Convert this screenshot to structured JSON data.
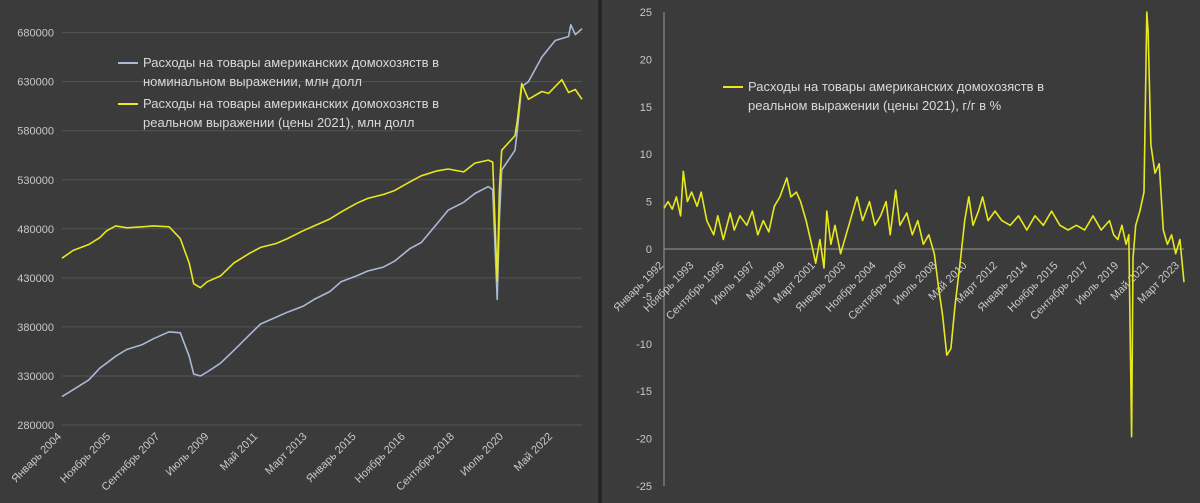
{
  "colors": {
    "background": "#3b3b3b",
    "grid": "#555555",
    "text": "#c8c8c8",
    "nominal": "#a9b9d6",
    "real": "#e8e81e"
  },
  "chart_data": [
    {
      "type": "line",
      "title": "",
      "xlabel": "",
      "ylabel": "",
      "x_range": [
        "2004-01",
        "2023-06"
      ],
      "ylim": [
        280000,
        700000
      ],
      "y_ticks": [
        "280000",
        "330000",
        "380000",
        "430000",
        "480000",
        "530000",
        "580000",
        "630000",
        "680000"
      ],
      "x_tick_labels": [
        "Январь 2004",
        "Ноябрь 2005",
        "Сентябрь 2007",
        "Июль 2009",
        "Май 2011",
        "Март 2013",
        "Январь 2015",
        "Ноябрь 2016",
        "Сентябрь 2018",
        "Июль 2020",
        "Май 2022"
      ],
      "x_tick_dates": [
        "2004-01",
        "2005-11",
        "2007-09",
        "2009-07",
        "2011-05",
        "2013-03",
        "2015-01",
        "2016-11",
        "2018-09",
        "2020-07",
        "2022-05"
      ],
      "grid": "horizontal",
      "legend_position": "top-left",
      "series": [
        {
          "name": "Расходы на товары американских домохозяств в номинальном выражении, млн долл",
          "legend_lines": [
            "Расходы на товары американских домохозяств в",
            "номинальном выражении, млн долл"
          ],
          "color": "#a9b9d6",
          "points": [
            [
              "2004-01",
              309000
            ],
            [
              "2004-06",
              316000
            ],
            [
              "2005-01",
              326000
            ],
            [
              "2005-06",
              338000
            ],
            [
              "2006-01",
              350000
            ],
            [
              "2006-06",
              357000
            ],
            [
              "2007-01",
              362000
            ],
            [
              "2007-06",
              368000
            ],
            [
              "2008-01",
              375000
            ],
            [
              "2008-06",
              374000
            ],
            [
              "2008-10",
              350000
            ],
            [
              "2008-12",
              332000
            ],
            [
              "2009-03",
              330000
            ],
            [
              "2009-06",
              334000
            ],
            [
              "2009-12",
              343000
            ],
            [
              "2010-06",
              356000
            ],
            [
              "2011-01",
              372000
            ],
            [
              "2011-06",
              383000
            ],
            [
              "2012-01",
              390000
            ],
            [
              "2012-06",
              395000
            ],
            [
              "2013-01",
              401000
            ],
            [
              "2013-06",
              408000
            ],
            [
              "2014-01",
              416000
            ],
            [
              "2014-06",
              426000
            ],
            [
              "2015-01",
              432000
            ],
            [
              "2015-06",
              437000
            ],
            [
              "2016-01",
              441000
            ],
            [
              "2016-06",
              447000
            ],
            [
              "2017-01",
              460000
            ],
            [
              "2017-06",
              466000
            ],
            [
              "2018-01",
              485000
            ],
            [
              "2018-06",
              499000
            ],
            [
              "2019-01",
              507000
            ],
            [
              "2019-06",
              516000
            ],
            [
              "2019-12",
              523000
            ],
            [
              "2020-02",
              520000
            ],
            [
              "2020-04",
              408000
            ],
            [
              "2020-05",
              490000
            ],
            [
              "2020-06",
              540000
            ],
            [
              "2020-12",
              560000
            ],
            [
              "2021-01",
              580000
            ],
            [
              "2021-03",
              625000
            ],
            [
              "2021-06",
              630000
            ],
            [
              "2021-12",
              655000
            ],
            [
              "2022-06",
              672000
            ],
            [
              "2022-12",
              676000
            ],
            [
              "2023-01",
              688000
            ],
            [
              "2023-03",
              678000
            ],
            [
              "2023-06",
              684000
            ]
          ]
        },
        {
          "name": "Расходы на товары американских домохозяств в реальном выражении (цены 2021), млн долл",
          "legend_lines": [
            "Расходы на товары американских домохозяств в",
            "реальном выражении (цены 2021), млн долл"
          ],
          "color": "#e8e81e",
          "points": [
            [
              "2004-01",
              450000
            ],
            [
              "2004-06",
              458000
            ],
            [
              "2005-01",
              464000
            ],
            [
              "2005-06",
              471000
            ],
            [
              "2005-09",
              478000
            ],
            [
              "2006-01",
              483000
            ],
            [
              "2006-06",
              481000
            ],
            [
              "2007-01",
              482000
            ],
            [
              "2007-06",
              483000
            ],
            [
              "2008-01",
              482000
            ],
            [
              "2008-06",
              470000
            ],
            [
              "2008-10",
              445000
            ],
            [
              "2008-12",
              424000
            ],
            [
              "2009-03",
              420000
            ],
            [
              "2009-06",
              426000
            ],
            [
              "2009-12",
              432000
            ],
            [
              "2010-06",
              445000
            ],
            [
              "2011-01",
              455000
            ],
            [
              "2011-06",
              461000
            ],
            [
              "2012-01",
              465000
            ],
            [
              "2012-06",
              470000
            ],
            [
              "2013-01",
              478000
            ],
            [
              "2013-06",
              483000
            ],
            [
              "2014-01",
              490000
            ],
            [
              "2014-06",
              497000
            ],
            [
              "2015-01",
              506000
            ],
            [
              "2015-06",
              511000
            ],
            [
              "2016-01",
              515000
            ],
            [
              "2016-06",
              519000
            ],
            [
              "2017-01",
              528000
            ],
            [
              "2017-06",
              534000
            ],
            [
              "2018-01",
              539000
            ],
            [
              "2018-06",
              541000
            ],
            [
              "2019-01",
              538000
            ],
            [
              "2019-06",
              547000
            ],
            [
              "2019-12",
              550000
            ],
            [
              "2020-02",
              548000
            ],
            [
              "2020-04",
              427000
            ],
            [
              "2020-05",
              520000
            ],
            [
              "2020-06",
              560000
            ],
            [
              "2020-12",
              575000
            ],
            [
              "2021-01",
              590000
            ],
            [
              "2021-03",
              628000
            ],
            [
              "2021-06",
              612000
            ],
            [
              "2021-12",
              620000
            ],
            [
              "2022-03",
              618000
            ],
            [
              "2022-06",
              625000
            ],
            [
              "2022-09",
              632000
            ],
            [
              "2022-12",
              619000
            ],
            [
              "2023-03",
              622000
            ],
            [
              "2023-06",
              612000
            ]
          ]
        }
      ]
    },
    {
      "type": "line",
      "title": "",
      "xlabel": "",
      "ylabel": "",
      "x_range": [
        "1992-01",
        "2023-06"
      ],
      "ylim": [
        -25,
        25
      ],
      "y_ticks": [
        "25",
        "20",
        "15",
        "10",
        "5",
        "0",
        "-5",
        "-10",
        "-15",
        "-20",
        "-25"
      ],
      "x_tick_labels": [
        "Январь 1992",
        "Ноябрь 1993",
        "Сентябрь 1995",
        "Июль 1997",
        "Май 1999",
        "Март 2001",
        "Январь 2003",
        "Ноябрь 2004",
        "Сентябрь 2006",
        "Июль 2008",
        "Май 2010",
        "Март 2012",
        "Январь 2014",
        "Ноябрь 2015",
        "Сентябрь 2017",
        "Июль 2019",
        "Май 2021",
        "Март 2023"
      ],
      "x_tick_dates": [
        "1992-01",
        "1993-11",
        "1995-09",
        "1997-07",
        "1999-05",
        "2001-03",
        "2003-01",
        "2004-11",
        "2006-09",
        "2008-07",
        "2010-05",
        "2012-03",
        "2014-01",
        "2015-11",
        "2017-09",
        "2019-07",
        "2021-05",
        "2023-03"
      ],
      "grid": "none",
      "legend_position": "top-left",
      "series": [
        {
          "name": "Расходы на товары американских домохозяств в реальном выражении (цены 2021), г/г в %",
          "legend_lines": [
            "Расходы на товары американских домохозяств в",
            "реальном выражении (цены 2021), г/г в %"
          ],
          "color": "#e8e81e",
          "points": [
            [
              "1992-01",
              4.3
            ],
            [
              "1992-04",
              5.0
            ],
            [
              "1992-07",
              4.2
            ],
            [
              "1992-10",
              5.5
            ],
            [
              "1993-01",
              3.5
            ],
            [
              "1993-03",
              8.2
            ],
            [
              "1993-06",
              5.0
            ],
            [
              "1993-09",
              6.0
            ],
            [
              "1994-01",
              4.5
            ],
            [
              "1994-04",
              6.0
            ],
            [
              "1994-08",
              3.0
            ],
            [
              "1995-01",
              1.5
            ],
            [
              "1995-04",
              3.5
            ],
            [
              "1995-08",
              1.0
            ],
            [
              "1996-01",
              3.8
            ],
            [
              "1996-04",
              2.0
            ],
            [
              "1996-08",
              3.5
            ],
            [
              "1997-01",
              2.5
            ],
            [
              "1997-05",
              4.0
            ],
            [
              "1997-09",
              1.5
            ],
            [
              "1998-01",
              3.0
            ],
            [
              "1998-05",
              1.8
            ],
            [
              "1998-09",
              4.5
            ],
            [
              "1999-01",
              5.5
            ],
            [
              "1999-06",
              7.5
            ],
            [
              "1999-09",
              5.5
            ],
            [
              "2000-01",
              6.0
            ],
            [
              "2000-04",
              5.0
            ],
            [
              "2000-08",
              3.0
            ],
            [
              "2000-12",
              0.5
            ],
            [
              "2001-03",
              -1.5
            ],
            [
              "2001-06",
              1.0
            ],
            [
              "2001-09",
              -2.0
            ],
            [
              "2001-11",
              4.0
            ],
            [
              "2002-02",
              0.5
            ],
            [
              "2002-05",
              2.5
            ],
            [
              "2002-09",
              -0.5
            ],
            [
              "2003-01",
              1.5
            ],
            [
              "2003-05",
              3.5
            ],
            [
              "2003-09",
              5.5
            ],
            [
              "2004-01",
              3.0
            ],
            [
              "2004-06",
              5.0
            ],
            [
              "2004-10",
              2.5
            ],
            [
              "2005-02",
              3.5
            ],
            [
              "2005-06",
              5.0
            ],
            [
              "2005-09",
              1.5
            ],
            [
              "2006-01",
              6.2
            ],
            [
              "2006-04",
              2.5
            ],
            [
              "2006-09",
              3.8
            ],
            [
              "2007-01",
              1.5
            ],
            [
              "2007-05",
              3.0
            ],
            [
              "2007-09",
              0.5
            ],
            [
              "2008-01",
              1.5
            ],
            [
              "2008-05",
              -0.5
            ],
            [
              "2008-08",
              -4.0
            ],
            [
              "2008-11",
              -7.0
            ],
            [
              "2009-02",
              -11.2
            ],
            [
              "2009-05",
              -10.5
            ],
            [
              "2009-08",
              -6.0
            ],
            [
              "2009-12",
              -1.0
            ],
            [
              "2010-03",
              3.0
            ],
            [
              "2010-06",
              5.5
            ],
            [
              "2010-09",
              2.5
            ],
            [
              "2011-01",
              4.0
            ],
            [
              "2011-04",
              5.5
            ],
            [
              "2011-08",
              3.0
            ],
            [
              "2012-01",
              4.0
            ],
            [
              "2012-06",
              3.0
            ],
            [
              "2012-12",
              2.5
            ],
            [
              "2013-06",
              3.5
            ],
            [
              "2013-12",
              2.0
            ],
            [
              "2014-06",
              3.5
            ],
            [
              "2014-12",
              2.5
            ],
            [
              "2015-06",
              4.0
            ],
            [
              "2015-12",
              2.5
            ],
            [
              "2016-06",
              2.0
            ],
            [
              "2016-12",
              2.5
            ],
            [
              "2017-06",
              2.0
            ],
            [
              "2017-12",
              3.5
            ],
            [
              "2018-06",
              2.0
            ],
            [
              "2018-12",
              3.0
            ],
            [
              "2019-03",
              1.5
            ],
            [
              "2019-06",
              1.0
            ],
            [
              "2019-09",
              2.5
            ],
            [
              "2019-12",
              0.5
            ],
            [
              "2020-02",
              1.5
            ],
            [
              "2020-04",
              -19.8
            ],
            [
              "2020-05",
              -1.0
            ],
            [
              "2020-07",
              2.5
            ],
            [
              "2020-10",
              4.0
            ],
            [
              "2021-01",
              6.0
            ],
            [
              "2021-03",
              25.0
            ],
            [
              "2021-04",
              23.0
            ],
            [
              "2021-06",
              11.0
            ],
            [
              "2021-09",
              8.0
            ],
            [
              "2021-12",
              9.0
            ],
            [
              "2022-03",
              2.0
            ],
            [
              "2022-06",
              0.5
            ],
            [
              "2022-09",
              1.5
            ],
            [
              "2022-12",
              -0.5
            ],
            [
              "2023-03",
              1.0
            ],
            [
              "2023-06",
              -3.5
            ]
          ]
        }
      ]
    }
  ]
}
